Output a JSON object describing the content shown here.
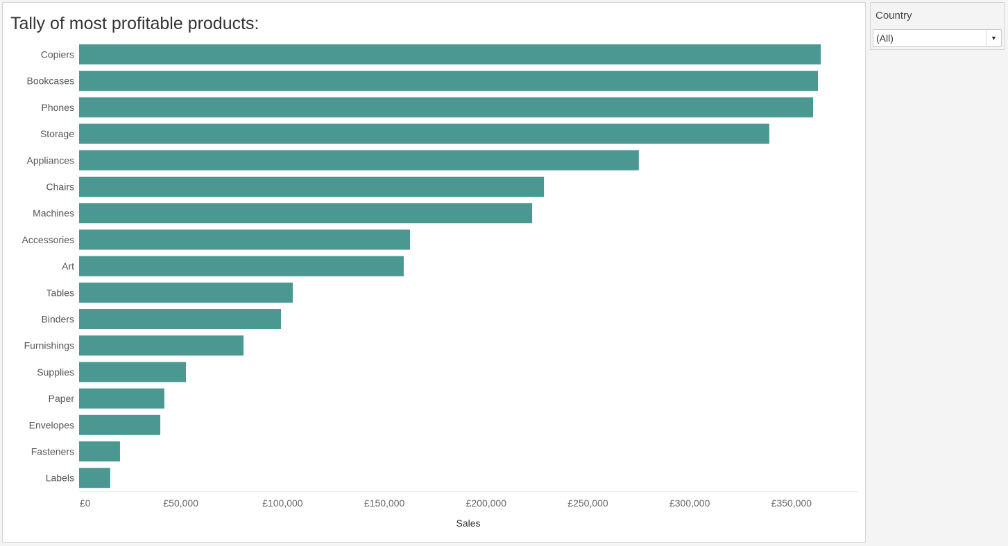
{
  "filter": {
    "label": "Country",
    "value": "(All)",
    "arrow_icon": "caret-down"
  },
  "colors": {
    "bar": "#4a9891"
  },
  "chart_data": {
    "type": "bar",
    "orientation": "horizontal",
    "title": "Tally of most profitable products:",
    "xlabel": "Sales",
    "ylabel": "",
    "xlim": [
      0,
      382000
    ],
    "xticks": [
      0,
      50000,
      100000,
      150000,
      200000,
      250000,
      300000,
      350000
    ],
    "xtick_labels": [
      "£0",
      "£50,000",
      "£100,000",
      "£150,000",
      "£200,000",
      "£250,000",
      "£300,000",
      "£350,000"
    ],
    "categories": [
      "Copiers",
      "Bookcases",
      "Phones",
      "Storage",
      "Appliances",
      "Chairs",
      "Machines",
      "Accessories",
      "Art",
      "Tables",
      "Binders",
      "Furnishings",
      "Supplies",
      "Paper",
      "Envelopes",
      "Fasteners",
      "Labels"
    ],
    "values": [
      364400,
      363000,
      360600,
      339100,
      275000,
      228400,
      222600,
      162600,
      159500,
      105000,
      99200,
      80800,
      52500,
      41900,
      39900,
      20100,
      15300
    ],
    "grid": false,
    "legend": "none"
  }
}
